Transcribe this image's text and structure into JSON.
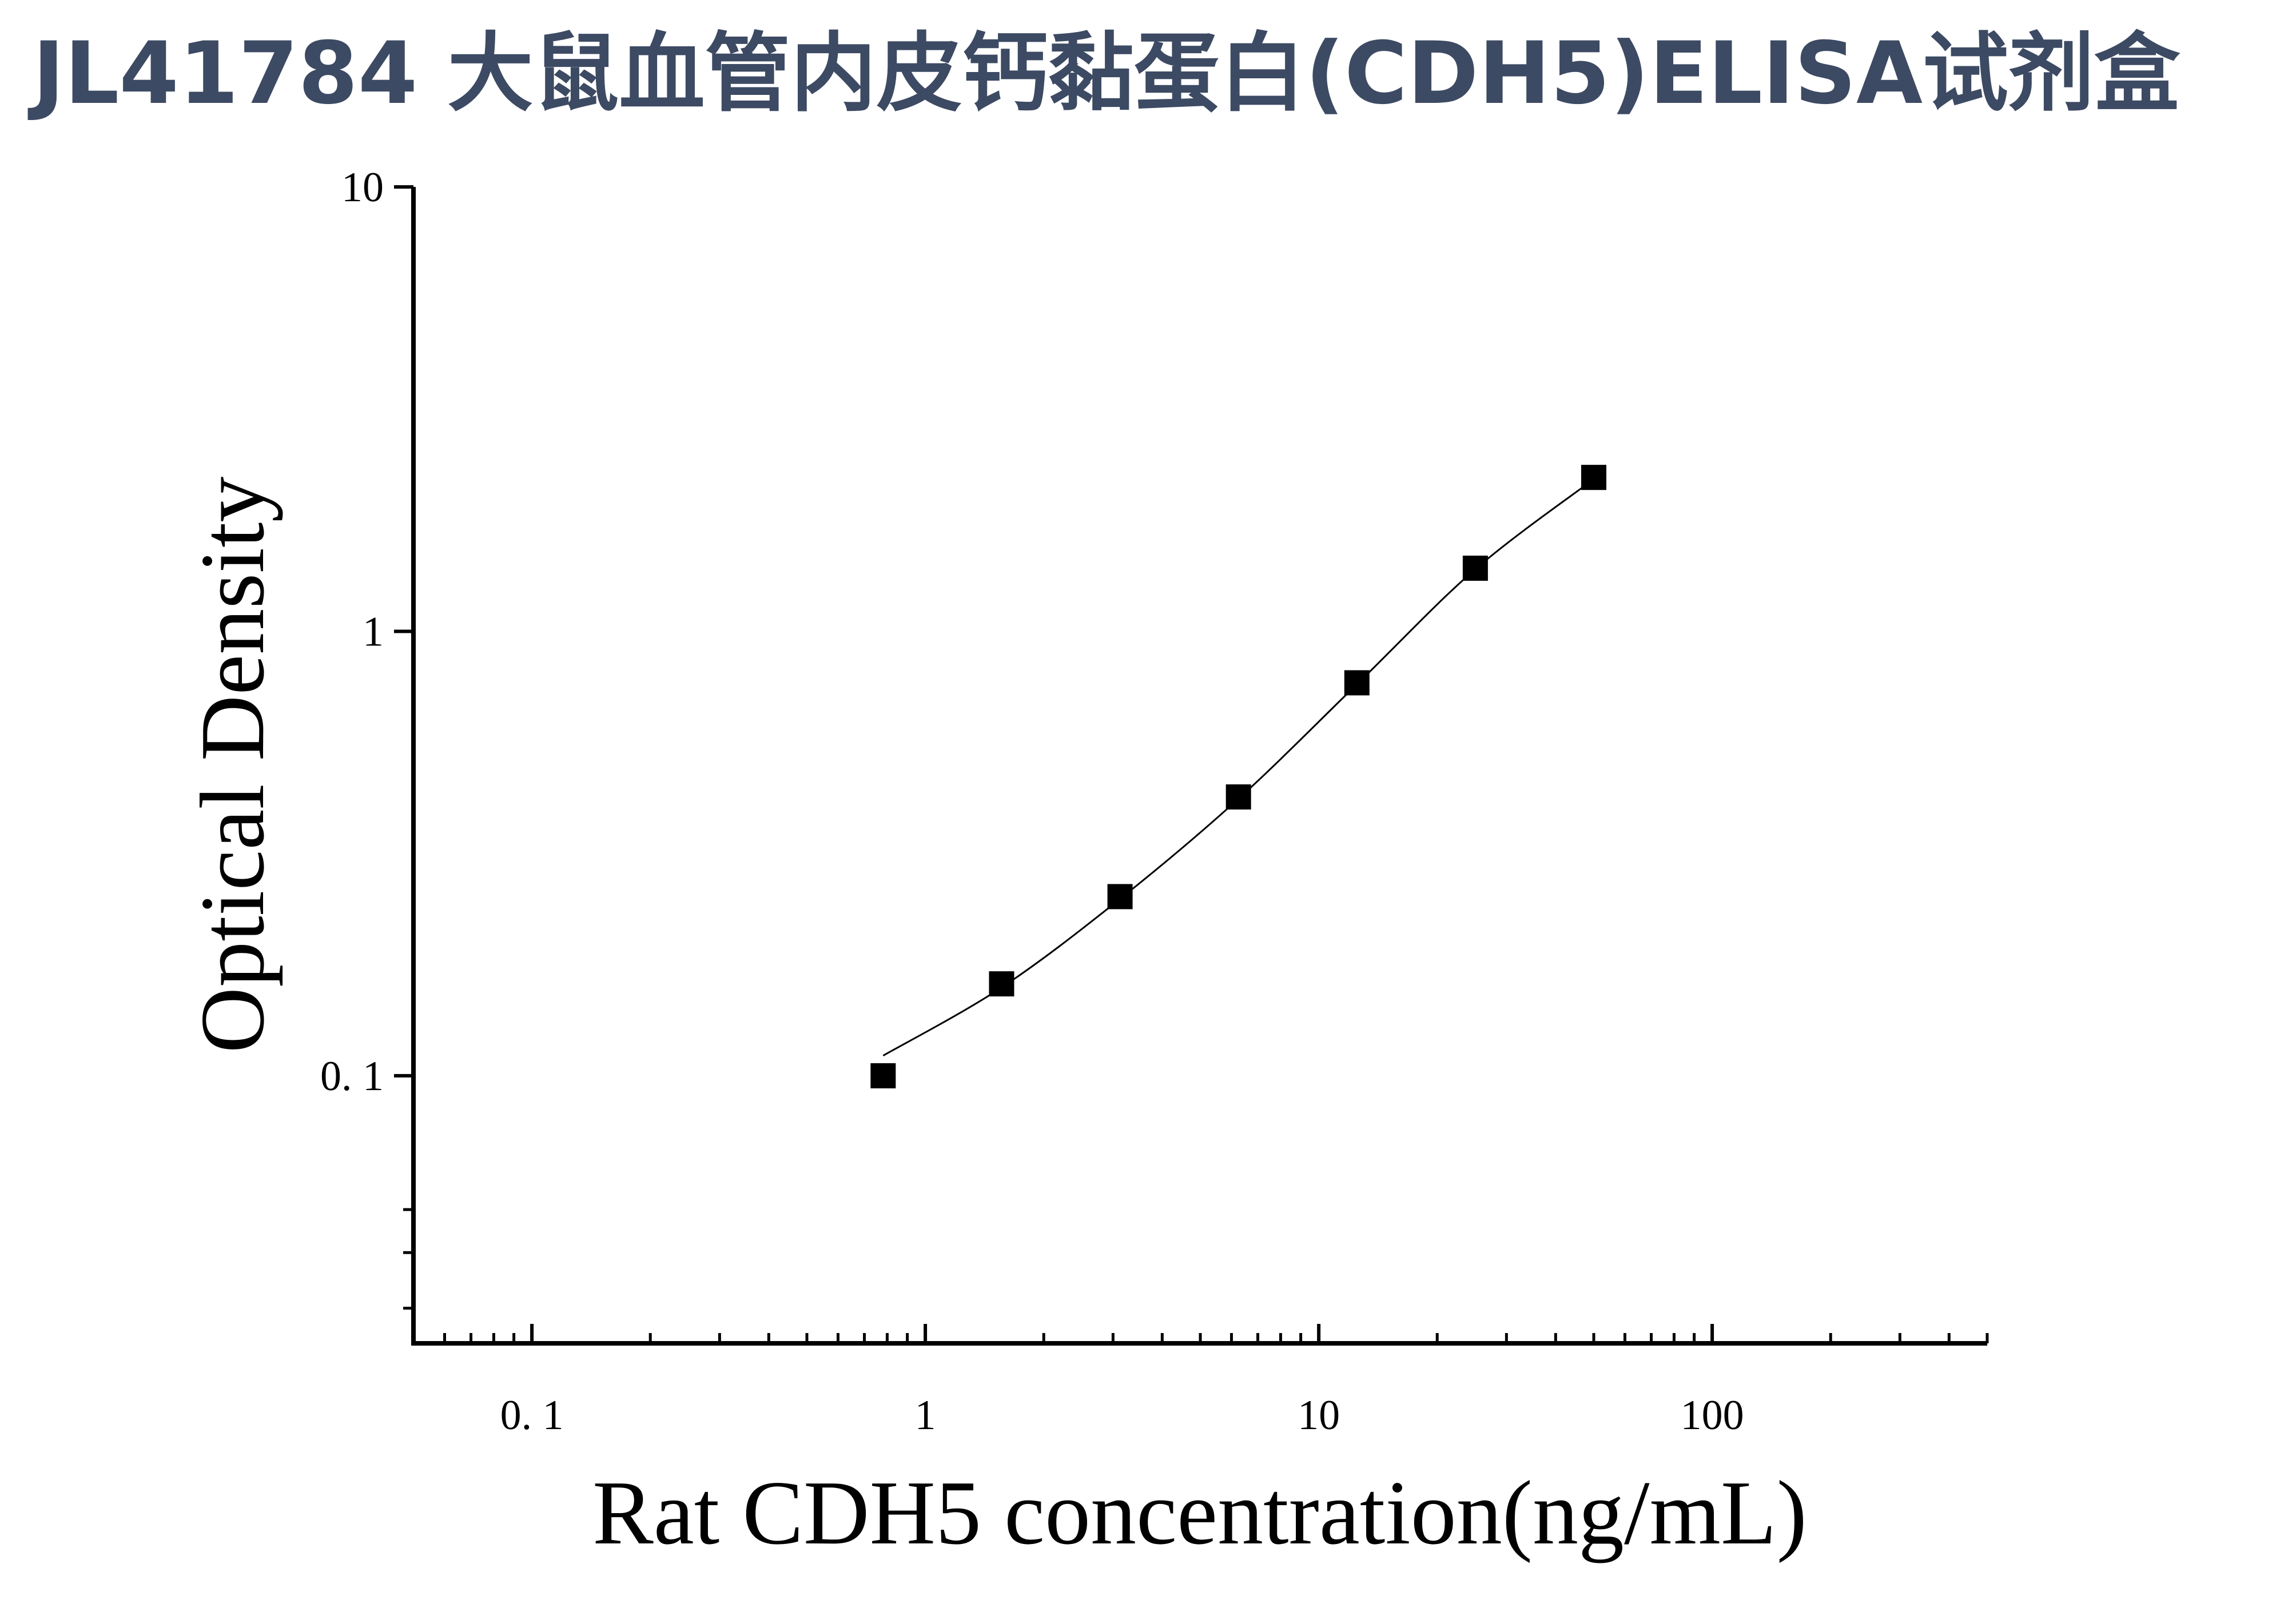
{
  "chart_data": {
    "type": "scatter",
    "title": "JL41784 大鼠血管内皮钙黏蛋白(CDH5)ELISA试剂盒",
    "xlabel": "Rat CDH5 concentration(ng/mL)",
    "ylabel": "Optical Density",
    "xscale": "log",
    "yscale": "log",
    "xlim": [
      0.05,
      500
    ],
    "ylim": [
      0.025,
      10
    ],
    "xticks": [
      {
        "value": 0.1,
        "label": "0. 1"
      },
      1,
      10,
      100
    ],
    "yticks": [
      {
        "value": 0.1,
        "label": "0. 1"
      },
      1,
      10
    ],
    "xminorticks": [
      0.06,
      0.07,
      0.08,
      0.09,
      0.2,
      0.3,
      0.4,
      0.5,
      0.6,
      0.7,
      0.8,
      0.9,
      2,
      3,
      4,
      5,
      6,
      7,
      8,
      9,
      20,
      30,
      40,
      50,
      60,
      70,
      80,
      90,
      200,
      300,
      400,
      500
    ],
    "yminorticks": [
      0.03,
      0.04,
      0.05
    ],
    "series": [
      {
        "kind": "points",
        "color": "#000000",
        "x": [
          0.78125,
          1.5625,
          3.125,
          6.25,
          12.5,
          25,
          50
        ],
        "values": [
          0.1,
          0.161,
          0.253,
          0.424,
          0.766,
          1.387,
          2.22
        ]
      },
      {
        "kind": "curve",
        "color": "#000000",
        "x": [
          0.78125,
          1.5625,
          3.125,
          6.25,
          12.5,
          25,
          50
        ],
        "values": [
          0.111,
          0.158,
          0.25,
          0.42,
          0.76,
          1.38,
          2.2
        ]
      }
    ]
  }
}
